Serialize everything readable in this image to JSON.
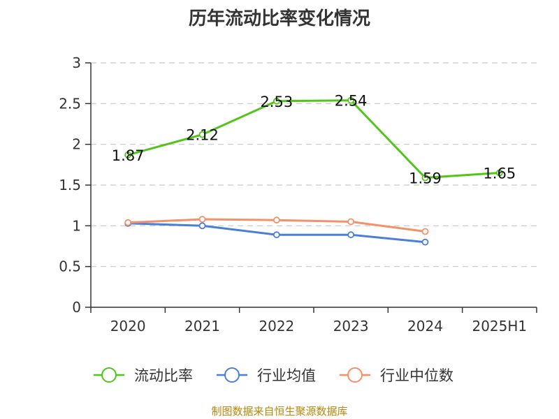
{
  "title": "历年流动比率变化情况",
  "source": "制图数据来自恒生聚源数据库",
  "chart_data": {
    "type": "line",
    "title": "历年流动比率变化情况",
    "categories": [
      "2020",
      "2021",
      "2022",
      "2023",
      "2024",
      "2025H1"
    ],
    "ylim": [
      0,
      3
    ],
    "yticks": [
      "0",
      "0.5",
      "1",
      "1.5",
      "2",
      "2.5",
      "3"
    ],
    "grid": true,
    "legend_position": "bottom",
    "series": [
      {
        "name": "流动比率",
        "color": "#52c41a",
        "values": [
          1.87,
          2.12,
          2.53,
          2.54,
          1.59,
          1.65
        ],
        "labels": [
          "1.87",
          "2.12",
          "2.53",
          "2.54",
          "1.59",
          "1.65"
        ]
      },
      {
        "name": "行业均值",
        "color": "#4a7fd8",
        "values": [
          1.03,
          1.0,
          0.89,
          0.89,
          0.8,
          null
        ]
      },
      {
        "name": "行业中位数",
        "color": "#f4906a",
        "values": [
          1.04,
          1.08,
          1.07,
          1.05,
          0.93,
          null
        ]
      }
    ]
  }
}
